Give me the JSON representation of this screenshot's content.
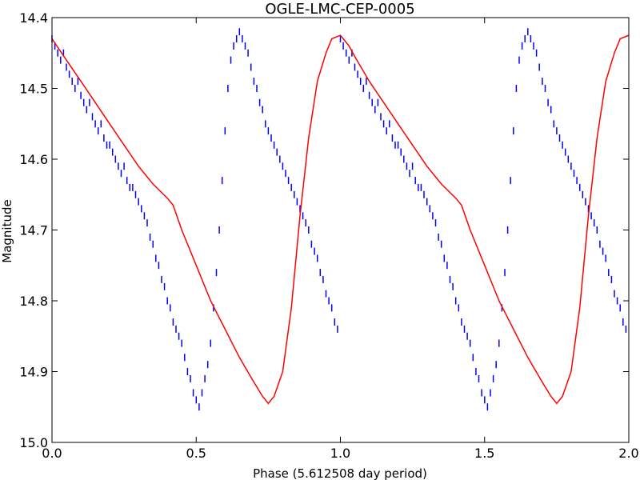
{
  "chart_data": {
    "type": "scatter",
    "title": "OGLE-LMC-CEP-0005",
    "xlabel": "Phase (5.612508 day period)",
    "ylabel": "Magnitude",
    "xlim": [
      0.0,
      2.0
    ],
    "ylim": [
      15.0,
      14.4
    ],
    "y_inverted": true,
    "grid": false,
    "x_ticks": [
      0.0,
      0.5,
      1.0,
      1.5,
      2.0
    ],
    "x_tick_labels": [
      "0.0",
      "0.5",
      "1.0",
      "1.5",
      "2.0"
    ],
    "y_ticks": [
      14.4,
      14.5,
      14.6,
      14.7,
      14.8,
      14.9,
      15.0
    ],
    "y_tick_labels": [
      "14.4",
      "14.5",
      "14.6",
      "14.7",
      "14.8",
      "14.9",
      "15.0"
    ],
    "marker": "vertical-line",
    "series": [
      {
        "kind": "observations",
        "color": "#0000ff",
        "x": [
          0.0,
          0.01,
          0.02,
          0.03,
          0.04,
          0.05,
          0.06,
          0.07,
          0.08,
          0.09,
          0.1,
          0.11,
          0.12,
          0.13,
          0.14,
          0.15,
          0.16,
          0.17,
          0.18,
          0.19,
          0.2,
          0.21,
          0.22,
          0.23,
          0.24,
          0.25,
          0.26,
          0.27,
          0.28,
          0.29,
          0.3,
          0.31,
          0.32,
          0.33,
          0.34,
          0.35,
          0.36,
          0.37,
          0.38,
          0.39,
          0.4,
          0.41,
          0.42,
          0.43,
          0.44,
          0.45,
          0.46,
          0.47,
          0.48,
          0.49,
          0.5,
          0.51,
          0.52,
          0.53,
          0.54,
          0.55,
          0.56,
          0.57,
          0.58,
          0.59,
          0.6,
          0.61,
          0.62,
          0.63,
          0.64,
          0.65,
          0.66,
          0.67,
          0.68,
          0.69,
          0.7,
          0.71,
          0.72,
          0.73,
          0.74,
          0.75,
          0.76,
          0.77,
          0.78,
          0.79,
          0.8,
          0.81,
          0.82,
          0.83,
          0.84,
          0.85,
          0.86,
          0.87,
          0.88,
          0.89,
          0.9,
          0.91,
          0.92,
          0.93,
          0.94,
          0.95,
          0.96,
          0.97,
          0.98,
          0.99,
          1.0,
          1.01,
          1.02,
          1.03,
          1.04,
          1.05,
          1.06,
          1.07,
          1.08,
          1.09,
          1.1,
          1.11,
          1.12,
          1.13,
          1.14,
          1.15,
          1.16,
          1.17,
          1.18,
          1.19,
          1.2,
          1.21,
          1.22,
          1.23,
          1.24,
          1.25,
          1.26,
          1.27,
          1.28,
          1.29,
          1.3,
          1.31,
          1.32,
          1.33,
          1.34,
          1.35,
          1.36,
          1.37,
          1.38,
          1.39,
          1.4,
          1.41,
          1.42,
          1.43,
          1.44,
          1.45,
          1.46,
          1.47,
          1.48,
          1.49,
          1.5,
          1.51,
          1.52,
          1.53,
          1.54,
          1.55,
          1.56,
          1.57,
          1.58,
          1.59,
          1.6,
          1.61,
          1.62,
          1.63,
          1.64,
          1.65,
          1.66,
          1.67,
          1.68,
          1.69,
          1.7,
          1.71,
          1.72,
          1.73,
          1.74,
          1.75,
          1.76,
          1.77,
          1.78,
          1.79,
          1.8,
          1.81,
          1.82,
          1.83,
          1.84,
          1.85,
          1.86,
          1.87,
          1.88,
          1.89,
          1.9,
          1.91,
          1.92,
          1.93,
          1.94,
          1.95,
          1.96,
          1.97,
          1.98,
          1.99
        ],
        "y": [
          14.43,
          14.44,
          14.45,
          14.46,
          14.45,
          14.47,
          14.48,
          14.49,
          14.5,
          14.49,
          14.51,
          14.52,
          14.53,
          14.52,
          14.54,
          14.55,
          14.56,
          14.55,
          14.57,
          14.58,
          14.58,
          14.59,
          14.6,
          14.61,
          14.62,
          14.61,
          14.63,
          14.64,
          14.64,
          14.65,
          14.66,
          14.67,
          14.68,
          14.69,
          14.71,
          14.72,
          14.74,
          14.75,
          14.77,
          14.78,
          14.8,
          14.81,
          14.83,
          14.84,
          14.85,
          14.86,
          14.88,
          14.9,
          14.91,
          14.93,
          14.94,
          14.95,
          14.93,
          14.91,
          14.89,
          14.86,
          14.81,
          14.76,
          14.7,
          14.63,
          14.56,
          14.5,
          14.46,
          14.44,
          14.43,
          14.42,
          14.43,
          14.44,
          14.45,
          14.47,
          14.49,
          14.5,
          14.52,
          14.53,
          14.55,
          14.56,
          14.57,
          14.58,
          14.59,
          14.6,
          14.61,
          14.62,
          14.63,
          14.64,
          14.65,
          14.66,
          14.67,
          14.68,
          14.69,
          14.7,
          14.72,
          14.73,
          14.74,
          14.76,
          14.77,
          14.79,
          14.8,
          14.81,
          14.83,
          14.84,
          14.43,
          14.44,
          14.45,
          14.46,
          14.45,
          14.47,
          14.48,
          14.49,
          14.5,
          14.49,
          14.51,
          14.52,
          14.53,
          14.52,
          14.54,
          14.55,
          14.56,
          14.55,
          14.57,
          14.58,
          14.58,
          14.59,
          14.6,
          14.61,
          14.62,
          14.61,
          14.63,
          14.64,
          14.64,
          14.65,
          14.66,
          14.67,
          14.68,
          14.69,
          14.71,
          14.72,
          14.74,
          14.75,
          14.77,
          14.78,
          14.8,
          14.81,
          14.83,
          14.84,
          14.85,
          14.86,
          14.88,
          14.9,
          14.91,
          14.93,
          14.94,
          14.95,
          14.93,
          14.91,
          14.89,
          14.86,
          14.81,
          14.76,
          14.7,
          14.63,
          14.56,
          14.5,
          14.46,
          14.44,
          14.43,
          14.42,
          14.43,
          14.44,
          14.45,
          14.47,
          14.49,
          14.5,
          14.52,
          14.53,
          14.55,
          14.56,
          14.57,
          14.58,
          14.59,
          14.6,
          14.61,
          14.62,
          14.63,
          14.64,
          14.65,
          14.66,
          14.67,
          14.68,
          14.69,
          14.7,
          14.72,
          14.73,
          14.74,
          14.76,
          14.77,
          14.79,
          14.8,
          14.81,
          14.83,
          14.84
        ]
      },
      {
        "kind": "model-fit",
        "color": "#ff0000",
        "x": [
          0.0,
          0.05,
          0.1,
          0.15,
          0.2,
          0.25,
          0.3,
          0.35,
          0.4,
          0.42,
          0.45,
          0.5,
          0.55,
          0.6,
          0.65,
          0.7,
          0.73,
          0.75,
          0.77,
          0.8,
          0.83,
          0.86,
          0.89,
          0.92,
          0.95,
          0.97,
          1.0,
          1.03,
          1.05,
          1.1,
          1.15,
          1.2,
          1.25,
          1.3,
          1.35,
          1.4,
          1.42,
          1.45,
          1.5,
          1.55,
          1.6,
          1.65,
          1.7,
          1.73,
          1.75,
          1.77,
          1.8,
          1.83,
          1.86,
          1.89,
          1.92,
          1.95,
          1.97,
          2.0
        ],
        "y": [
          14.43,
          14.46,
          14.49,
          14.52,
          14.55,
          14.58,
          14.61,
          14.635,
          14.655,
          14.665,
          14.7,
          14.75,
          14.8,
          14.84,
          14.88,
          14.915,
          14.935,
          14.945,
          14.935,
          14.9,
          14.81,
          14.68,
          14.57,
          14.49,
          14.45,
          14.43,
          14.425,
          14.44,
          14.455,
          14.49,
          14.52,
          14.55,
          14.58,
          14.61,
          14.635,
          14.655,
          14.665,
          14.7,
          14.75,
          14.8,
          14.84,
          14.88,
          14.915,
          14.935,
          14.945,
          14.935,
          14.9,
          14.81,
          14.68,
          14.57,
          14.49,
          14.45,
          14.43,
          14.425
        ]
      }
    ]
  }
}
